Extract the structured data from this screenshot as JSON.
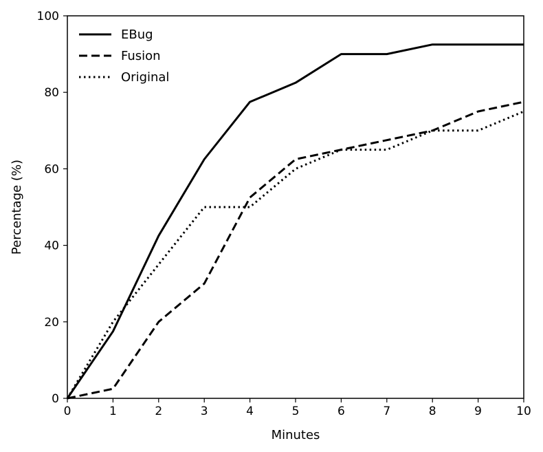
{
  "chart_data": {
    "type": "line",
    "title": "",
    "xlabel": "Minutes",
    "ylabel": "Percentage (%)",
    "xlim": [
      0,
      10
    ],
    "ylim": [
      0,
      100
    ],
    "xticks": [
      0,
      1,
      2,
      3,
      4,
      5,
      6,
      7,
      8,
      9,
      10
    ],
    "yticks": [
      0,
      20,
      40,
      60,
      80,
      100
    ],
    "grid": false,
    "legend_position": "top-left",
    "x": [
      0,
      1,
      2,
      3,
      4,
      5,
      6,
      7,
      8,
      9,
      10
    ],
    "series": [
      {
        "name": "EBug",
        "style": "solid",
        "values": [
          0,
          17.5,
          42.5,
          62.5,
          77.5,
          82.5,
          90,
          90,
          92.5,
          92.5,
          92.5
        ]
      },
      {
        "name": "Fusion",
        "style": "dashed",
        "values": [
          0,
          2.5,
          20,
          30,
          52.5,
          62.5,
          65,
          67.5,
          70,
          75,
          77.5
        ]
      },
      {
        "name": "Original",
        "style": "dotted",
        "values": [
          0,
          20,
          35,
          50,
          50,
          60,
          65,
          65,
          70,
          70,
          75
        ]
      }
    ],
    "line_color": "#000000"
  }
}
